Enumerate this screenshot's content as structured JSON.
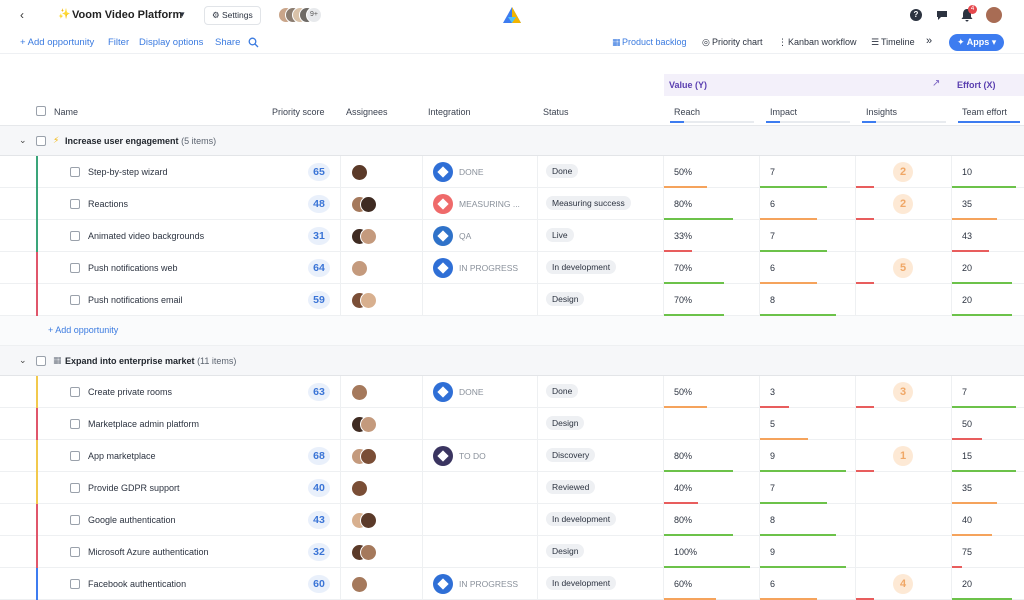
{
  "app": {
    "title": "Voom Video Platform",
    "settings_label": "Settings",
    "avatar_overflow": "9+",
    "notification_count": "4"
  },
  "toolbar": {
    "add_opportunity": "+ Add opportunity",
    "filter": "Filter",
    "display_options": "Display options",
    "share": "Share",
    "views": [
      "Product backlog",
      "Priority chart",
      "Kanban workflow",
      "Timeline"
    ],
    "apps": "Apps"
  },
  "columns": {
    "name": "Name",
    "priority": "Priority score",
    "assignees": "Assignees",
    "integration": "Integration",
    "status": "Status",
    "value_group": "Value (Y)",
    "effort_group": "Effort (X)",
    "reach": "Reach",
    "impact": "Impact",
    "insights": "Insights",
    "team_effort": "Team effort"
  },
  "groups": [
    {
      "icon": "lightning-icon",
      "title": "Increase user engagement",
      "count": "(5 items)",
      "add_label": "+ Add opportunity",
      "rows": [
        {
          "name": "Step-by-step wizard",
          "score": "65",
          "integration": "DONE",
          "status": "Done",
          "reach": "50%",
          "impact": "7",
          "insights": "2",
          "effort": "10",
          "accent": "#3aa57a"
        },
        {
          "name": "Reactions",
          "score": "48",
          "integration": "MEASURING ...",
          "status": "Measuring success",
          "reach": "80%",
          "impact": "6",
          "insights": "2",
          "effort": "35",
          "accent": "#3aa57a"
        },
        {
          "name": "Animated video backgrounds",
          "score": "31",
          "integration": "QA",
          "status": "Live",
          "reach": "33%",
          "impact": "7",
          "insights": "",
          "effort": "43",
          "accent": "#3aa57a"
        },
        {
          "name": "Push notifications web",
          "score": "64",
          "integration": "IN PROGRESS",
          "status": "In development",
          "reach": "70%",
          "impact": "6",
          "insights": "5",
          "effort": "20",
          "accent": "#e0566b"
        },
        {
          "name": "Push notifications email",
          "score": "59",
          "integration": "",
          "status": "Design",
          "reach": "70%",
          "impact": "8",
          "insights": "",
          "effort": "20",
          "accent": "#e0566b"
        }
      ]
    },
    {
      "icon": "building-icon",
      "title": "Expand into enterprise market",
      "count": "(11 items)",
      "rows": [
        {
          "name": "Create private rooms",
          "score": "63",
          "integration": "DONE",
          "status": "Done",
          "reach": "50%",
          "impact": "3",
          "insights": "3",
          "effort": "7",
          "accent": "#f2c94c"
        },
        {
          "name": "Marketplace admin platform",
          "score": "",
          "integration": "",
          "status": "Design",
          "reach": "",
          "impact": "5",
          "insights": "",
          "effort": "50",
          "accent": "#e0566b"
        },
        {
          "name": "App marketplace",
          "score": "68",
          "integration": "TO DO",
          "status": "Discovery",
          "reach": "80%",
          "impact": "9",
          "insights": "1",
          "effort": "15",
          "accent": "#f2c94c"
        },
        {
          "name": "Provide GDPR support",
          "score": "40",
          "integration": "",
          "status": "Reviewed",
          "reach": "40%",
          "impact": "7",
          "insights": "",
          "effort": "35",
          "accent": "#f2c94c"
        },
        {
          "name": "Google authentication",
          "score": "43",
          "integration": "",
          "status": "In development",
          "reach": "80%",
          "impact": "8",
          "insights": "",
          "effort": "40",
          "accent": "#e0566b"
        },
        {
          "name": "Microsoft Azure authentication",
          "score": "32",
          "integration": "",
          "status": "Design",
          "reach": "100%",
          "impact": "9",
          "insights": "",
          "effort": "75",
          "accent": "#e0566b"
        },
        {
          "name": "Facebook authentication",
          "score": "60",
          "integration": "IN PROGRESS",
          "status": "In development",
          "reach": "60%",
          "impact": "6",
          "insights": "4",
          "effort": "20",
          "accent": "#3d7cf0"
        }
      ]
    }
  ]
}
